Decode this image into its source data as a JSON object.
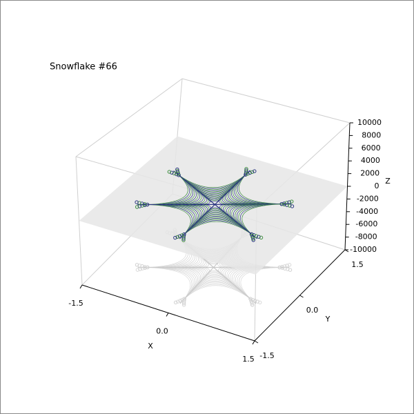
{
  "chart_data": {
    "type": "surface3d",
    "title": "Snowflake #66",
    "x_label": "X",
    "y_label": "Y",
    "z_label": "Z",
    "xlim": [
      -1.5,
      1.5
    ],
    "ylim": [
      -1.5,
      1.5
    ],
    "zlim": [
      -10000,
      10000
    ],
    "xticks": [
      -1.5,
      {
        "value": 0,
        "label": "0.0"
      },
      1.5
    ],
    "yticks": [
      -1.5,
      {
        "value": 0,
        "label": "0.0"
      },
      1.5
    ],
    "zticks": [
      -10000,
      -8000,
      -6000,
      -4000,
      -2000,
      0,
      2000,
      4000,
      6000,
      8000,
      10000
    ],
    "grid": false
  }
}
